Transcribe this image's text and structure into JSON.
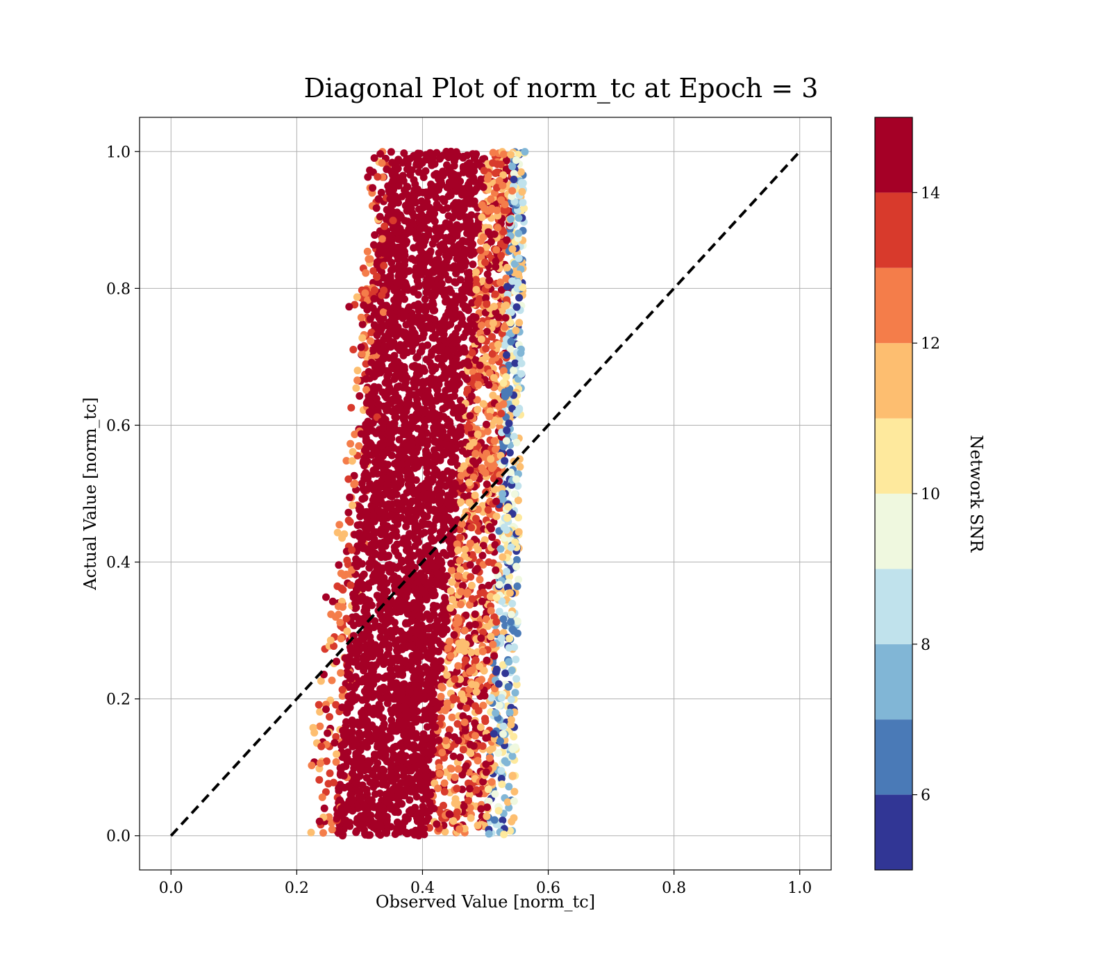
{
  "chart_data": {
    "type": "scatter",
    "title": "Diagonal Plot of norm_tc at Epoch = 3",
    "xlabel": "Observed Value [norm_tc]",
    "ylabel": "Actual Value [norm_tc]",
    "xlim": [
      -0.05,
      1.05
    ],
    "ylim": [
      -0.05,
      1.05
    ],
    "xticks": [
      "0.0",
      "0.2",
      "0.4",
      "0.6",
      "0.8",
      "1.0"
    ],
    "yticks": [
      "0.0",
      "0.2",
      "0.4",
      "0.6",
      "0.8",
      "1.0"
    ],
    "grid": true,
    "reference_line": {
      "style": "dashed",
      "color": "#000000",
      "from": [
        0,
        0
      ],
      "to": [
        1,
        1
      ]
    },
    "colorbar": {
      "label": "Network SNR",
      "range": [
        5,
        15
      ],
      "ticks": [
        "6",
        "8",
        "10",
        "12",
        "14"
      ],
      "bins": [
        {
          "from": 5,
          "to": 6,
          "color": "#313695"
        },
        {
          "from": 6,
          "to": 7,
          "color": "#4a7ab7"
        },
        {
          "from": 7,
          "to": 8,
          "color": "#81b6d6"
        },
        {
          "from": 8,
          "to": 9,
          "color": "#c0e2ec"
        },
        {
          "from": 9,
          "to": 10,
          "color": "#eff8df"
        },
        {
          "from": 10,
          "to": 11,
          "color": "#fee99d"
        },
        {
          "from": 11,
          "to": 12,
          "color": "#fdbe70"
        },
        {
          "from": 12,
          "to": 13,
          "color": "#f47d4a"
        },
        {
          "from": 13,
          "to": 14,
          "color": "#d83a2c"
        },
        {
          "from": 14,
          "to": 15,
          "color": "#a50026"
        }
      ]
    },
    "distribution": {
      "x_band_at_y0": [
        0.23,
        0.54
      ],
      "x_band_at_y1": [
        0.33,
        0.56
      ],
      "high_snr_core_at_y0": [
        0.26,
        0.41
      ],
      "high_snr_core_at_y1": [
        0.34,
        0.5
      ]
    }
  }
}
